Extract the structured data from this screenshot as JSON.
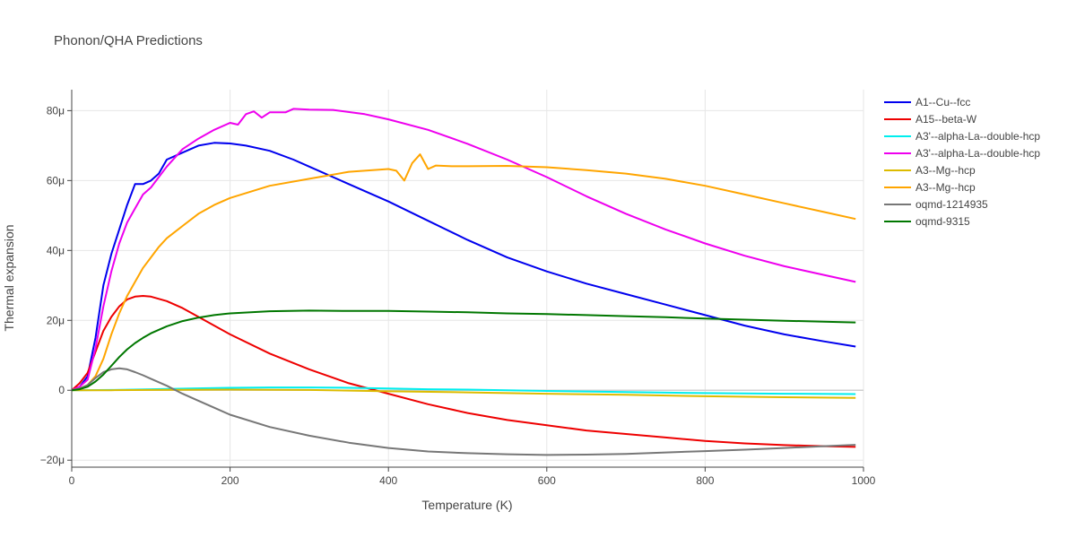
{
  "chart_data": {
    "type": "line",
    "title": "Phonon/QHA Predictions",
    "xlabel": "Temperature (K)",
    "ylabel": "Thermal expansion",
    "xlim": [
      0,
      1000
    ],
    "ylim": [
      -22,
      86
    ],
    "x_ticks": [
      0,
      200,
      400,
      600,
      800,
      1000
    ],
    "x_tick_labels": [
      "0",
      "200",
      "400",
      "600",
      "800",
      "1000"
    ],
    "y_ticks": [
      -20,
      0,
      20,
      40,
      60,
      80
    ],
    "y_tick_labels": [
      "−20μ",
      "0",
      "20μ",
      "40μ",
      "60μ",
      "80μ"
    ],
    "grid": true,
    "legend_position": "top-right outside",
    "series": [
      {
        "name": "A1--Cu--fcc",
        "color": "#0000ee",
        "points": [
          [
            0,
            0
          ],
          [
            10,
            1
          ],
          [
            20,
            4
          ],
          [
            30,
            15
          ],
          [
            40,
            30
          ],
          [
            50,
            39
          ],
          [
            60,
            46
          ],
          [
            70,
            53
          ],
          [
            80,
            59
          ],
          [
            90,
            59
          ],
          [
            100,
            60
          ],
          [
            110,
            62
          ],
          [
            120,
            66
          ],
          [
            140,
            68
          ],
          [
            160,
            70
          ],
          [
            180,
            70.8
          ],
          [
            200,
            70.6
          ],
          [
            220,
            70
          ],
          [
            250,
            68.5
          ],
          [
            280,
            66
          ],
          [
            300,
            64
          ],
          [
            350,
            59
          ],
          [
            400,
            54
          ],
          [
            450,
            48.5
          ],
          [
            500,
            43
          ],
          [
            550,
            38
          ],
          [
            600,
            34
          ],
          [
            650,
            30.5
          ],
          [
            700,
            27.5
          ],
          [
            750,
            24.5
          ],
          [
            800,
            21.5
          ],
          [
            850,
            18.5
          ],
          [
            900,
            16
          ],
          [
            950,
            14
          ],
          [
            990,
            12.5
          ]
        ]
      },
      {
        "name": "A15--beta-W",
        "color": "#ee0000",
        "points": [
          [
            0,
            0
          ],
          [
            10,
            2
          ],
          [
            20,
            5
          ],
          [
            30,
            11
          ],
          [
            40,
            17
          ],
          [
            50,
            21
          ],
          [
            60,
            24
          ],
          [
            70,
            26
          ],
          [
            80,
            26.8
          ],
          [
            90,
            27
          ],
          [
            100,
            26.8
          ],
          [
            120,
            25.5
          ],
          [
            140,
            23.5
          ],
          [
            160,
            21
          ],
          [
            180,
            18.5
          ],
          [
            200,
            16
          ],
          [
            250,
            10.5
          ],
          [
            300,
            6
          ],
          [
            350,
            2
          ],
          [
            400,
            -1
          ],
          [
            450,
            -4
          ],
          [
            500,
            -6.5
          ],
          [
            550,
            -8.5
          ],
          [
            600,
            -10
          ],
          [
            650,
            -11.5
          ],
          [
            700,
            -12.5
          ],
          [
            750,
            -13.5
          ],
          [
            800,
            -14.5
          ],
          [
            850,
            -15.2
          ],
          [
            900,
            -15.7
          ],
          [
            950,
            -16
          ],
          [
            990,
            -16.2
          ]
        ]
      },
      {
        "name": "A3'--alpha-La--double-hcp",
        "color": "#00eeee",
        "points": [
          [
            0,
            0
          ],
          [
            50,
            0.1
          ],
          [
            100,
            0.3
          ],
          [
            150,
            0.5
          ],
          [
            200,
            0.7
          ],
          [
            250,
            0.8
          ],
          [
            300,
            0.8
          ],
          [
            350,
            0.7
          ],
          [
            400,
            0.5
          ],
          [
            450,
            0.3
          ],
          [
            500,
            0.2
          ],
          [
            550,
            0
          ],
          [
            600,
            -0.2
          ],
          [
            700,
            -0.5
          ],
          [
            800,
            -0.8
          ],
          [
            900,
            -1
          ],
          [
            990,
            -1.1
          ]
        ]
      },
      {
        "name": "A3'--alpha-La--double-hcp",
        "color": "#ee00ee",
        "points": [
          [
            0,
            0
          ],
          [
            10,
            1
          ],
          [
            20,
            3
          ],
          [
            30,
            12
          ],
          [
            40,
            24
          ],
          [
            50,
            34
          ],
          [
            60,
            42
          ],
          [
            70,
            48
          ],
          [
            80,
            52
          ],
          [
            90,
            56
          ],
          [
            100,
            58
          ],
          [
            110,
            61
          ],
          [
            120,
            64
          ],
          [
            140,
            69
          ],
          [
            160,
            72
          ],
          [
            180,
            74.5
          ],
          [
            200,
            76.5
          ],
          [
            210,
            76
          ],
          [
            220,
            79
          ],
          [
            230,
            79.8
          ],
          [
            240,
            78
          ],
          [
            250,
            79.5
          ],
          [
            270,
            79.5
          ],
          [
            280,
            80.5
          ],
          [
            300,
            80.3
          ],
          [
            330,
            80.2
          ],
          [
            370,
            79
          ],
          [
            400,
            77.5
          ],
          [
            450,
            74.5
          ],
          [
            500,
            70.5
          ],
          [
            550,
            66
          ],
          [
            600,
            61
          ],
          [
            650,
            55.5
          ],
          [
            700,
            50.5
          ],
          [
            750,
            46
          ],
          [
            800,
            42
          ],
          [
            850,
            38.5
          ],
          [
            900,
            35.5
          ],
          [
            950,
            33
          ],
          [
            990,
            31
          ]
        ]
      },
      {
        "name": "A3--Mg--hcp",
        "color": "#ddbb00",
        "points": [
          [
            0,
            0
          ],
          [
            50,
            0
          ],
          [
            100,
            0.1
          ],
          [
            200,
            0.2
          ],
          [
            300,
            0.1
          ],
          [
            400,
            -0.3
          ],
          [
            500,
            -0.6
          ],
          [
            600,
            -1
          ],
          [
            700,
            -1.3
          ],
          [
            800,
            -1.7
          ],
          [
            900,
            -2
          ],
          [
            990,
            -2.2
          ]
        ]
      },
      {
        "name": "A3--Mg--hcp",
        "color": "#ffa500",
        "points": [
          [
            0,
            0
          ],
          [
            10,
            0.5
          ],
          [
            20,
            1.5
          ],
          [
            30,
            4
          ],
          [
            40,
            9
          ],
          [
            50,
            16
          ],
          [
            60,
            22
          ],
          [
            70,
            27
          ],
          [
            80,
            31
          ],
          [
            90,
            35
          ],
          [
            100,
            38
          ],
          [
            110,
            41
          ],
          [
            120,
            43.5
          ],
          [
            140,
            47
          ],
          [
            160,
            50.5
          ],
          [
            180,
            53
          ],
          [
            200,
            55
          ],
          [
            250,
            58.5
          ],
          [
            300,
            60.5
          ],
          [
            350,
            62.5
          ],
          [
            400,
            63.3
          ],
          [
            410,
            62.8
          ],
          [
            420,
            60
          ],
          [
            430,
            65
          ],
          [
            440,
            67.5
          ],
          [
            450,
            63.3
          ],
          [
            460,
            64.3
          ],
          [
            480,
            64.1
          ],
          [
            500,
            64.1
          ],
          [
            550,
            64.2
          ],
          [
            600,
            63.8
          ],
          [
            650,
            63
          ],
          [
            700,
            62
          ],
          [
            750,
            60.5
          ],
          [
            800,
            58.5
          ],
          [
            850,
            56
          ],
          [
            900,
            53.5
          ],
          [
            950,
            51
          ],
          [
            990,
            49
          ]
        ]
      },
      {
        "name": "oqmd-1214935",
        "color": "#777777",
        "points": [
          [
            0,
            0
          ],
          [
            10,
            0.5
          ],
          [
            20,
            1.5
          ],
          [
            30,
            3.5
          ],
          [
            40,
            5.2
          ],
          [
            50,
            6
          ],
          [
            60,
            6.3
          ],
          [
            70,
            6
          ],
          [
            80,
            5.2
          ],
          [
            90,
            4.3
          ],
          [
            100,
            3.3
          ],
          [
            120,
            1.3
          ],
          [
            140,
            -1
          ],
          [
            160,
            -3
          ],
          [
            180,
            -5
          ],
          [
            200,
            -7
          ],
          [
            250,
            -10.5
          ],
          [
            300,
            -13
          ],
          [
            350,
            -15
          ],
          [
            400,
            -16.5
          ],
          [
            450,
            -17.5
          ],
          [
            500,
            -18
          ],
          [
            550,
            -18.3
          ],
          [
            600,
            -18.5
          ],
          [
            650,
            -18.4
          ],
          [
            700,
            -18.2
          ],
          [
            750,
            -17.8
          ],
          [
            800,
            -17.4
          ],
          [
            850,
            -17
          ],
          [
            900,
            -16.5
          ],
          [
            950,
            -16
          ],
          [
            990,
            -15.6
          ]
        ]
      },
      {
        "name": "oqmd-9315",
        "color": "#007700",
        "points": [
          [
            0,
            0
          ],
          [
            10,
            0.3
          ],
          [
            20,
            1
          ],
          [
            30,
            2.5
          ],
          [
            40,
            4.5
          ],
          [
            50,
            7
          ],
          [
            60,
            9.5
          ],
          [
            70,
            11.7
          ],
          [
            80,
            13.5
          ],
          [
            90,
            15
          ],
          [
            100,
            16.3
          ],
          [
            120,
            18.3
          ],
          [
            140,
            19.8
          ],
          [
            160,
            20.8
          ],
          [
            180,
            21.5
          ],
          [
            200,
            22
          ],
          [
            250,
            22.6
          ],
          [
            300,
            22.8
          ],
          [
            350,
            22.7
          ],
          [
            400,
            22.7
          ],
          [
            450,
            22.5
          ],
          [
            500,
            22.3
          ],
          [
            550,
            22
          ],
          [
            600,
            21.8
          ],
          [
            650,
            21.5
          ],
          [
            700,
            21.2
          ],
          [
            750,
            20.9
          ],
          [
            800,
            20.5
          ],
          [
            850,
            20.2
          ],
          [
            900,
            19.9
          ],
          [
            950,
            19.6
          ],
          [
            990,
            19.4
          ]
        ]
      }
    ]
  }
}
